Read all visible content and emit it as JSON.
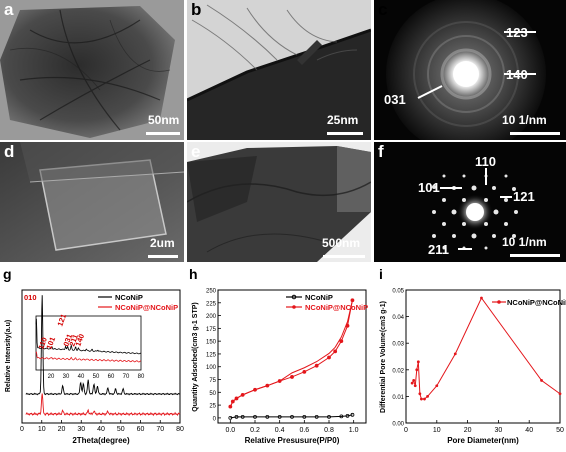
{
  "panels": {
    "a": {
      "label": "a",
      "scale": "50nm"
    },
    "b": {
      "label": "b",
      "scale": "25nm"
    },
    "c": {
      "label": "c",
      "scale": "10 1/nm",
      "rings": [
        "123",
        "140",
        "031"
      ]
    },
    "d": {
      "label": "d",
      "scale": "2um"
    },
    "e": {
      "label": "e",
      "scale": "500nm"
    },
    "f": {
      "label": "f",
      "scale": "10 1/nm",
      "spots": [
        "110",
        "101",
        "121",
        "211"
      ]
    },
    "g": {
      "label": "g"
    },
    "h": {
      "label": "h"
    },
    "i": {
      "label": "i"
    }
  },
  "colors": {
    "black_series": "#000000",
    "red_series": "#e4161b",
    "annotation": "#d40000"
  },
  "chart_data": [
    {
      "panel": "g",
      "type": "line",
      "xlabel": "2Theta(degree)",
      "ylabel": "Relative Intensity(a.u)",
      "xlim": [
        0,
        80
      ],
      "xticks": [
        "0",
        "10",
        "20",
        "30",
        "40",
        "50",
        "60",
        "70",
        "80"
      ],
      "legend": [
        "NCoNiP",
        "NCoNiP@NCoNiP"
      ],
      "peak_labels": [
        "010",
        "110",
        "101",
        "121",
        "031",
        "211",
        "140"
      ],
      "inset": {
        "xlim": [
          10,
          80
        ],
        "xticks": [
          "20",
          "30",
          "40",
          "50",
          "60",
          "70",
          "80"
        ]
      },
      "series": [
        {
          "name": "NCoNiP",
          "color": "#000000",
          "x": [
            10.2,
            20.6,
            29.7,
            31.1,
            33.5,
            36.4,
            38.2,
            43.5,
            47.4,
            51.2
          ],
          "y": [
            1.0,
            0.08,
            0.12,
            0.1,
            0.14,
            0.1,
            0.08,
            0.06,
            0.05,
            0.05
          ]
        },
        {
          "name": "NCoNiP@NCoNiP",
          "color": "#e4161b",
          "x": [
            10.2,
            20.6,
            33.5,
            36.4,
            43.5
          ],
          "y": [
            0.35,
            0.05,
            0.06,
            0.05,
            0.04
          ]
        }
      ]
    },
    {
      "panel": "h",
      "type": "line",
      "xlabel": "Relative Presusure(P/P0)",
      "ylabel": "Quantity Adsorbed(cm3 g-1 STP)",
      "xlim": [
        -0.1,
        1.1
      ],
      "ylim": [
        -10,
        250
      ],
      "xticks": [
        0.0,
        0.2,
        0.4,
        0.6,
        0.8,
        1.0
      ],
      "yticks": [
        0,
        25,
        50,
        75,
        100,
        125,
        150,
        175,
        200,
        225,
        250
      ],
      "legend": [
        "NCoNiP",
        "NCoNiP@NCoNiP"
      ],
      "series": [
        {
          "name": "NCoNiP",
          "color": "#000000",
          "x": [
            0.0,
            0.05,
            0.1,
            0.2,
            0.3,
            0.4,
            0.5,
            0.6,
            0.7,
            0.8,
            0.9,
            0.95,
            0.99
          ],
          "y": [
            0,
            2,
            2,
            2,
            2,
            2,
            2,
            2,
            2,
            2,
            3,
            4,
            6
          ]
        },
        {
          "name": "NCoNiP@NCoNiP",
          "color": "#e4161b",
          "x": [
            0.0,
            0.02,
            0.05,
            0.1,
            0.2,
            0.3,
            0.4,
            0.5,
            0.6,
            0.7,
            0.8,
            0.85,
            0.9,
            0.95,
            0.99
          ],
          "y": [
            22,
            32,
            38,
            45,
            55,
            63,
            72,
            80,
            90,
            102,
            118,
            130,
            150,
            180,
            230
          ]
        }
      ]
    },
    {
      "panel": "i",
      "type": "line",
      "xlabel": "Pore Diameter(nm)",
      "ylabel": "Differential Pore Volume(cm3 g-1)",
      "xlim": [
        0,
        50
      ],
      "ylim": [
        0.0,
        0.05
      ],
      "xticks": [
        0,
        10,
        20,
        30,
        40,
        50
      ],
      "yticks": [
        0.0,
        0.01,
        0.02,
        0.03,
        0.04,
        0.05
      ],
      "legend": [
        "NCoNiP@NCoNiP"
      ],
      "series": [
        {
          "name": "NCoNiP@NCoNiP",
          "color": "#e4161b",
          "x": [
            2.0,
            2.5,
            3.0,
            3.5,
            4.0,
            4.5,
            5.0,
            6.0,
            7.0,
            10.0,
            16.0,
            24.5,
            44.0,
            50.0
          ],
          "y": [
            0.015,
            0.016,
            0.014,
            0.02,
            0.023,
            0.011,
            0.009,
            0.009,
            0.01,
            0.014,
            0.026,
            0.047,
            0.016,
            0.011
          ]
        }
      ]
    }
  ]
}
